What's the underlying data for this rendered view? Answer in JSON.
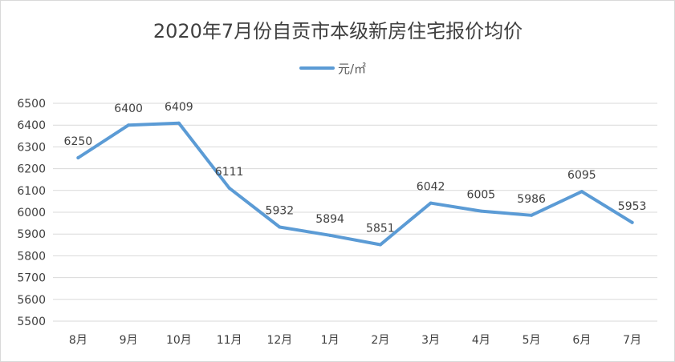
{
  "chart_data": {
    "type": "line",
    "title": "2020年7月份自贡市本级新房住宅报价均价",
    "legend_position": "top",
    "grid": true,
    "categories": [
      "8月",
      "9月",
      "10月",
      "11月",
      "12月",
      "1月",
      "2月",
      "3月",
      "4月",
      "5月",
      "6月",
      "7月"
    ],
    "series": [
      {
        "name": "元/㎡",
        "color": "#5B9BD5",
        "values": [
          6250,
          6400,
          6409,
          6111,
          5932,
          5894,
          5851,
          6042,
          6005,
          5986,
          6095,
          5953
        ]
      }
    ],
    "ylim": [
      5500,
      6500
    ],
    "yticks": [
      5500,
      5600,
      5700,
      5800,
      5900,
      6000,
      6100,
      6200,
      6300,
      6400,
      6500
    ],
    "xlabel": "",
    "ylabel": ""
  }
}
